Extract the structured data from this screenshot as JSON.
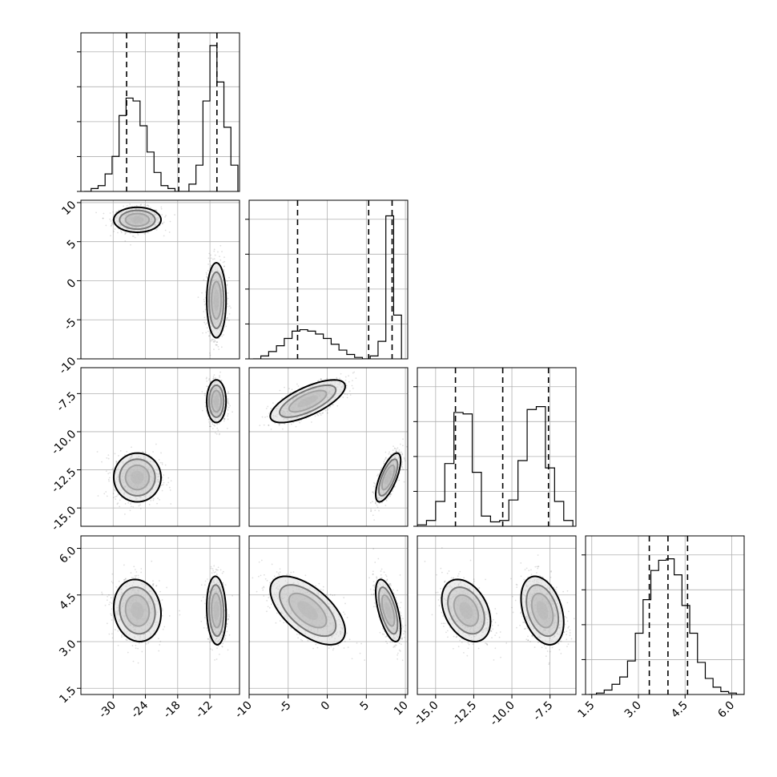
{
  "chart_data": {
    "type": "corner",
    "n_params": 4,
    "ranges": [
      [
        -36,
        -6.5
      ],
      [
        -10,
        10.3
      ],
      [
        -16.2,
        -5.8
      ],
      [
        1.3,
        6.4
      ]
    ],
    "grid": true,
    "diagonal_ticks": [
      [
        -30,
        -24,
        -18,
        -12
      ],
      [
        -10,
        -5,
        0,
        5,
        10
      ],
      [
        -15.0,
        -12.5,
        -10.0,
        -7.5
      ],
      [
        1.5,
        3.0,
        4.5,
        6.0
      ]
    ],
    "y_tick_labels": [
      null,
      [
        "10",
        "5",
        "0",
        "-5",
        "-10"
      ],
      [
        "-7.5",
        "-10.0",
        "-12.5",
        "-15.0"
      ],
      [
        "6.0",
        "4.5",
        "3.0",
        "1.5"
      ]
    ],
    "x_tick_labels": [
      [
        "-30",
        "-24",
        "-18",
        "-12"
      ],
      [
        "-10",
        "-5",
        "0",
        "5",
        "10"
      ],
      [
        "-15.0",
        "-12.5",
        "-10.0",
        "-7.5"
      ],
      [
        "1.5",
        "3.0",
        "4.5",
        "6.0"
      ]
    ],
    "quantiles": [
      [
        -27.5,
        -17.8,
        -10.7
      ],
      [
        -3.8,
        5.3,
        8.3
      ],
      [
        -13.7,
        -10.6,
        -7.6
      ],
      [
        3.35,
        3.95,
        4.58
      ]
    ],
    "marginals": [
      {
        "bin_edges": [
          -35.4,
          -34.1,
          -32.8,
          -31.5,
          -30.2,
          -28.9,
          -27.6,
          -26.3,
          -25.0,
          -23.7,
          -22.4,
          -21.1,
          -19.8,
          -18.5,
          -17.2,
          -15.9,
          -14.6,
          -13.3,
          -12.0,
          -10.7,
          -9.4,
          -8.1,
          -6.8
        ],
        "counts": [
          0.0,
          0.02,
          0.04,
          0.12,
          0.24,
          0.52,
          0.64,
          0.62,
          0.45,
          0.27,
          0.13,
          0.04,
          0.02,
          0.0,
          0.0,
          0.05,
          0.18,
          0.62,
          1.0,
          0.75,
          0.44,
          0.18
        ]
      },
      {
        "bin_edges": [
          -9.5,
          -8.5,
          -7.5,
          -6.5,
          -5.5,
          -4.5,
          -3.5,
          -2.5,
          -1.5,
          -0.5,
          0.5,
          1.5,
          2.5,
          3.5,
          4.5,
          5.5,
          6.5,
          7.5,
          8.5,
          9.5
        ],
        "counts": [
          0.0,
          0.02,
          0.05,
          0.09,
          0.14,
          0.19,
          0.2,
          0.19,
          0.17,
          0.14,
          0.1,
          0.06,
          0.03,
          0.01,
          0.0,
          0.02,
          0.12,
          0.98,
          0.3
        ]
      },
      {
        "bin_edges": [
          -16.2,
          -15.6,
          -15.0,
          -14.4,
          -13.8,
          -13.2,
          -12.6,
          -12.0,
          -11.4,
          -10.8,
          -10.2,
          -9.6,
          -9.0,
          -8.4,
          -7.8,
          -7.2,
          -6.6,
          -6.0
        ],
        "counts": [
          0.01,
          0.04,
          0.17,
          0.43,
          0.78,
          0.77,
          0.37,
          0.07,
          0.03,
          0.04,
          0.18,
          0.45,
          0.8,
          0.82,
          0.4,
          0.17,
          0.04
        ]
      },
      {
        "bin_edges": [
          1.4,
          1.65,
          1.9,
          2.15,
          2.4,
          2.65,
          2.9,
          3.15,
          3.4,
          3.65,
          3.9,
          4.15,
          4.4,
          4.65,
          4.9,
          5.15,
          5.4,
          5.65,
          5.9,
          6.15,
          6.4
        ],
        "counts": [
          0.0,
          0.01,
          0.03,
          0.07,
          0.12,
          0.23,
          0.42,
          0.65,
          0.85,
          0.92,
          0.93,
          0.82,
          0.61,
          0.42,
          0.22,
          0.11,
          0.05,
          0.02,
          0.01,
          0.0
        ]
      }
    ],
    "clusters": [
      {
        "mean": [
          -25.5,
          7.8,
          -13.0,
          4.0
        ],
        "sd": [
          2.2,
          0.8,
          0.8,
          0.5
        ]
      },
      {
        "mean": [
          -10.8,
          -2.5,
          -8.0,
          4.0
        ],
        "sd": [
          0.9,
          2.4,
          0.7,
          0.55
        ]
      }
    ],
    "correlations": {
      "1,2": 0.7,
      "0,3": -0.1,
      "1,3": -0.6,
      "2,3": -0.35
    }
  }
}
